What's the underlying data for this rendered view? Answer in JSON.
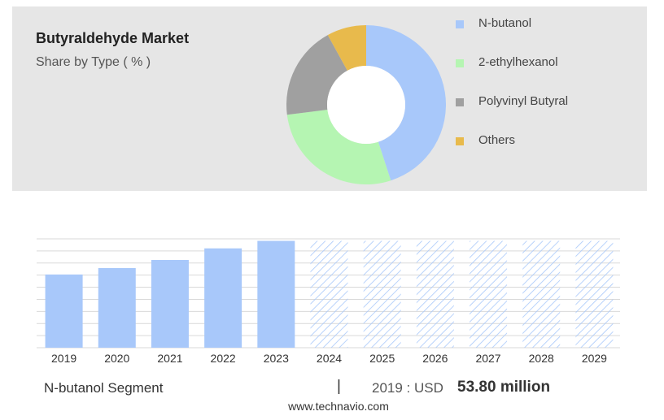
{
  "header": {
    "title": "Butyraldehyde Market",
    "subtitle": "Share by Type ( % )"
  },
  "chart_data": [
    {
      "type": "pie",
      "variant": "donut",
      "title": "Butyraldehyde Market",
      "subtitle": "Share by Type ( % )",
      "legend_position": "right",
      "slices": [
        {
          "label": "N-butanol",
          "value": 45,
          "color": "#a8c8fa"
        },
        {
          "label": "2-ethylhexanol",
          "value": 28,
          "color": "#b5f5b2"
        },
        {
          "label": "Polyvinyl Butyral",
          "value": 19,
          "color": "#a0a0a0"
        },
        {
          "label": "Others",
          "value": 8,
          "color": "#e8ba4c"
        }
      ]
    },
    {
      "type": "bar",
      "categories": [
        "2019",
        "2020",
        "2021",
        "2022",
        "2023",
        "2024",
        "2025",
        "2026",
        "2027",
        "2028",
        "2029"
      ],
      "values": [
        53.8,
        58.5,
        64.5,
        73.0,
        78.5,
        78.5,
        78.5,
        78.5,
        78.5,
        78.5,
        78.5
      ],
      "forecast": [
        false,
        false,
        false,
        false,
        false,
        true,
        true,
        true,
        true,
        true,
        true
      ],
      "ylim": [
        0,
        80
      ],
      "grid": true,
      "bar_color": "#a8c8fa",
      "forecast_pattern": "diagonal-hatch"
    }
  ],
  "footer": {
    "segment_label": "N-butanol Segment",
    "separator": "|",
    "year_label": "2019 : USD",
    "value_label": "53.80 million",
    "url": "www.technavio.com"
  }
}
